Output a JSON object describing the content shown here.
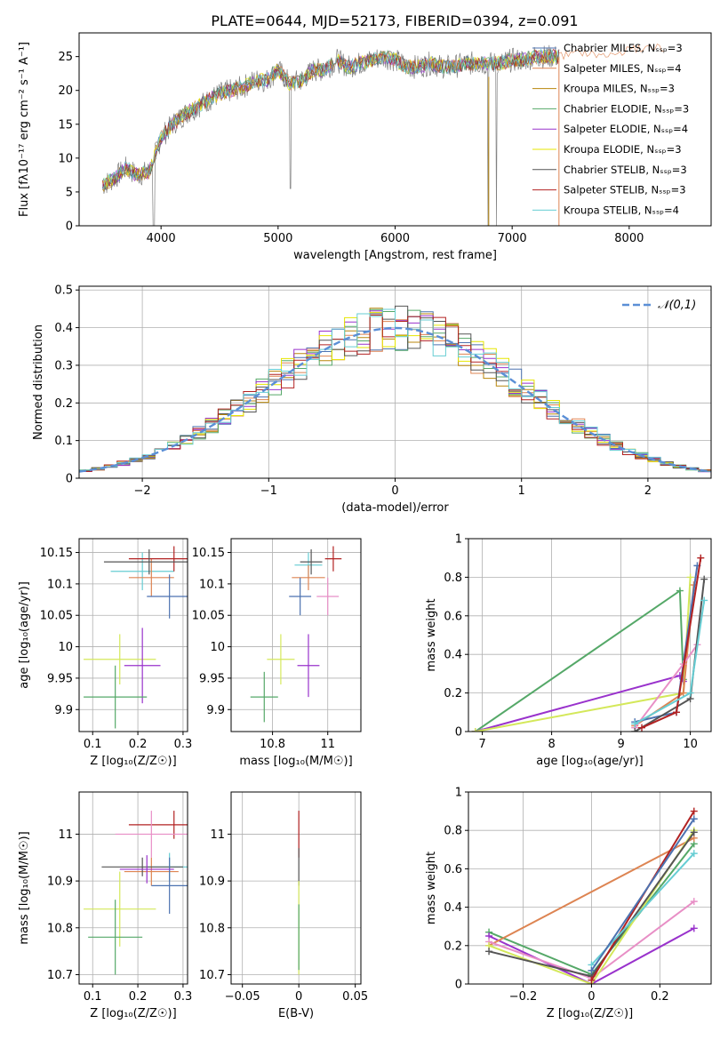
{
  "figure": {
    "title": "PLATE=0644, MJD=52173, FIBERID=0394, z=0.091"
  },
  "chart_data": [
    {
      "id": "spectrum",
      "type": "line",
      "xlabel": "wavelength [Angstrom, rest frame]",
      "ylabel": "Flux [fλ10⁻¹⁷ erg cm⁻² s⁻¹ A⁻¹]",
      "xlim": [
        3300,
        8700
      ],
      "ylim": [
        0,
        28.5
      ],
      "xticks": [
        4000,
        5000,
        6000,
        7000,
        8000
      ],
      "yticks": [
        0,
        5,
        10,
        15,
        20,
        25
      ],
      "grid": false,
      "legend_position": "right",
      "observed_color": "#808080",
      "continuum": {
        "x": [
          3500,
          3600,
          3700,
          3800,
          3900,
          4000,
          4100,
          4200,
          4300,
          4400,
          4500,
          4600,
          4700,
          4800,
          4900,
          5000,
          5100,
          5200,
          5300,
          5400,
          5500,
          5600,
          5700,
          5800,
          5900,
          6000,
          6100,
          6200,
          6300,
          6400,
          6500,
          6600,
          6700,
          6800,
          6900,
          7000,
          7100,
          7200,
          7300,
          7400
        ],
        "y": [
          6.0,
          7.0,
          8.5,
          7.5,
          8.0,
          13.0,
          15.0,
          16.5,
          17.5,
          18.5,
          19.5,
          20.0,
          20.5,
          21.5,
          21.5,
          23.0,
          21.0,
          21.5,
          23.0,
          23.0,
          24.5,
          23.5,
          24.0,
          24.5,
          25.0,
          24.5,
          23.5,
          23.5,
          24.0,
          23.5,
          23.5,
          24.0,
          24.0,
          24.0,
          24.0,
          24.5,
          24.5,
          25.0,
          25.0,
          25.0
        ]
      },
      "model_extension": {
        "x": [
          7400,
          7600,
          7800,
          8000,
          8200,
          8300
        ],
        "y": [
          25.0,
          25.5,
          25.0,
          26.0,
          26.5,
          26.0
        ]
      },
      "series": [
        {
          "name": "Chabrier MILES, N_SSP=3",
          "color": "#4c72b0"
        },
        {
          "name": "Salpeter MILES, N_SSP=4",
          "color": "#dd8452"
        },
        {
          "name": "Kroupa MILES, N_SSP=3",
          "color": "#b8860b"
        },
        {
          "name": "Chabrier ELODIE, N_SSP=3",
          "color": "#55a868"
        },
        {
          "name": "Salpeter ELODIE, N_SSP=4",
          "color": "#9932cc"
        },
        {
          "name": "Kroupa ELODIE, N_SSP=3",
          "color": "#e6e600"
        },
        {
          "name": "Chabrier STELIB, N_SSP=3",
          "color": "#555555"
        },
        {
          "name": "Salpeter STELIB, N_SSP=3",
          "color": "#b22222"
        },
        {
          "name": "Kroupa STELIB, N_SSP=4",
          "color": "#66cdd3"
        }
      ]
    },
    {
      "id": "residuals",
      "type": "line",
      "xlabel": "(data-model)/error",
      "ylabel": "Normed distribution",
      "xlim": [
        -2.5,
        2.5
      ],
      "ylim": [
        0,
        0.51
      ],
      "xticks": [
        -2,
        -1,
        0,
        1,
        2
      ],
      "yticks": [
        0.0,
        0.1,
        0.2,
        0.3,
        0.4,
        0.5
      ],
      "grid": true,
      "legend": "𝒩(0,1)",
      "legend_position": "top-right",
      "gauss_color": "#5b8fd6",
      "bin_width": 0.1,
      "hist_colors": [
        "#4c72b0",
        "#dd8452",
        "#b8860b",
        "#55a868",
        "#9932cc",
        "#e6e600",
        "#555555",
        "#b22222",
        "#66cdd3"
      ]
    },
    {
      "id": "age-vs-z",
      "type": "scatter",
      "xlabel": "Z [log₁₀(Z/Z☉)]",
      "ylabel": "age [log₁₀(age/yr)]",
      "xlim": [
        0.07,
        0.31
      ],
      "ylim": [
        9.865,
        10.172
      ],
      "xticks": [
        0.1,
        0.2,
        0.3
      ],
      "yticks": [
        9.9,
        9.95,
        10.0,
        10.05,
        10.1,
        10.15
      ],
      "grid": true,
      "points": [
        {
          "x": 0.21,
          "y": 10.12,
          "xerr": 0.07,
          "yerr": 0.03,
          "color": "#66cdd3"
        },
        {
          "x": 0.23,
          "y": 10.11,
          "xerr": 0.05,
          "yerr": 0.03,
          "color": "#dd8452"
        },
        {
          "x": 0.28,
          "y": 10.14,
          "xerr": 0.1,
          "yerr": 0.02,
          "color": "#b22222"
        },
        {
          "x": 0.225,
          "y": 10.135,
          "xerr": 0.1,
          "yerr": 0.02,
          "color": "#555555"
        },
        {
          "x": 0.27,
          "y": 10.08,
          "xerr": 0.05,
          "yerr": 0.035,
          "color": "#4c72b0"
        },
        {
          "x": 0.16,
          "y": 9.98,
          "xerr": 0.08,
          "yerr": 0.04,
          "color": "#d4e85a"
        },
        {
          "x": 0.21,
          "y": 9.97,
          "xerr": 0.04,
          "yerr": 0.06,
          "color": "#9932cc"
        },
        {
          "x": 0.15,
          "y": 9.92,
          "xerr": 0.07,
          "yerr": 0.05,
          "color": "#55a868"
        }
      ]
    },
    {
      "id": "age-vs-mass",
      "type": "scatter",
      "xlabel": "mass [log₁₀(M/M☉)]",
      "ylabel": "",
      "xlim": [
        10.65,
        11.12
      ],
      "ylim": [
        9.865,
        10.172
      ],
      "xticks": [
        10.8,
        11.0
      ],
      "yticks": [
        9.9,
        9.95,
        10.0,
        10.05,
        10.1,
        10.15
      ],
      "grid": true,
      "points": [
        {
          "x": 10.93,
          "y": 10.13,
          "xerr": 0.05,
          "yerr": 0.02,
          "color": "#66cdd3"
        },
        {
          "x": 10.93,
          "y": 10.11,
          "xerr": 0.06,
          "yerr": 0.02,
          "color": "#dd8452"
        },
        {
          "x": 11.02,
          "y": 10.14,
          "xerr": 0.03,
          "yerr": 0.02,
          "color": "#b22222"
        },
        {
          "x": 10.94,
          "y": 10.135,
          "xerr": 0.04,
          "yerr": 0.02,
          "color": "#555555"
        },
        {
          "x": 10.9,
          "y": 10.08,
          "xerr": 0.04,
          "yerr": 0.03,
          "color": "#4c72b0"
        },
        {
          "x": 11.0,
          "y": 10.08,
          "xerr": 0.04,
          "yerr": 0.03,
          "color": "#e88fc6"
        },
        {
          "x": 10.83,
          "y": 9.98,
          "xerr": 0.05,
          "yerr": 0.04,
          "color": "#d4e85a"
        },
        {
          "x": 10.93,
          "y": 9.97,
          "xerr": 0.04,
          "yerr": 0.05,
          "color": "#9932cc"
        },
        {
          "x": 10.77,
          "y": 9.92,
          "xerr": 0.05,
          "yerr": 0.04,
          "color": "#55a868"
        }
      ]
    },
    {
      "id": "weight-vs-age",
      "type": "line",
      "xlabel": "age [log₁₀(age/yr)]",
      "ylabel": "mass weight",
      "xlim": [
        6.8,
        10.3
      ],
      "ylim": [
        0,
        1.0
      ],
      "xticks": [
        7,
        8,
        9,
        10
      ],
      "yticks": [
        0.0,
        0.2,
        0.4,
        0.6,
        0.8,
        1.0
      ],
      "grid": true,
      "series": [
        {
          "color": "#55a868",
          "x": [
            6.9,
            9.85,
            9.9
          ],
          "y": [
            0.0,
            0.73,
            0.27
          ]
        },
        {
          "color": "#9932cc",
          "x": [
            6.9,
            9.85,
            9.9
          ],
          "y": [
            0.0,
            0.29,
            0.26
          ]
        },
        {
          "color": "#d4e85a",
          "x": [
            6.9,
            9.9,
            10.0
          ],
          "y": [
            0.0,
            0.2,
            0.8
          ]
        },
        {
          "color": "#dd8452",
          "x": [
            9.2,
            9.9,
            10.05
          ],
          "y": [
            0.03,
            0.2,
            0.76
          ]
        },
        {
          "color": "#4c72b0",
          "x": [
            9.2,
            9.8,
            10.1
          ],
          "y": [
            0.05,
            0.1,
            0.86
          ]
        },
        {
          "color": "#e88fc6",
          "x": [
            9.2,
            9.9,
            10.1
          ],
          "y": [
            0.02,
            0.35,
            0.45
          ]
        },
        {
          "color": "#555555",
          "x": [
            9.2,
            10.0,
            10.2
          ],
          "y": [
            0.0,
            0.17,
            0.79
          ]
        },
        {
          "color": "#b22222",
          "x": [
            9.3,
            9.8,
            10.15
          ],
          "y": [
            0.02,
            0.1,
            0.9
          ]
        },
        {
          "color": "#66cdd3",
          "x": [
            9.2,
            10.0,
            10.2
          ],
          "y": [
            0.04,
            0.2,
            0.68
          ]
        }
      ]
    },
    {
      "id": "mass-vs-z",
      "type": "scatter",
      "xlabel": "Z [log₁₀(Z/Z☉)]",
      "ylabel": "mass [log₁₀(M/M☉)]",
      "xlim": [
        0.07,
        0.31
      ],
      "ylim": [
        10.68,
        11.09
      ],
      "xticks": [
        0.1,
        0.2,
        0.3
      ],
      "yticks": [
        10.7,
        10.8,
        10.9,
        11.0
      ],
      "grid": true,
      "points": [
        {
          "x": 0.27,
          "y": 10.93,
          "xerr": 0.05,
          "yerr": 0.03,
          "color": "#66cdd3"
        },
        {
          "x": 0.23,
          "y": 10.92,
          "xerr": 0.06,
          "yerr": 0.03,
          "color": "#dd8452"
        },
        {
          "x": 0.28,
          "y": 11.02,
          "xerr": 0.1,
          "yerr": 0.03,
          "color": "#b22222"
        },
        {
          "x": 0.23,
          "y": 11.0,
          "xerr": 0.08,
          "yerr": 0.05,
          "color": "#e88fc6"
        },
        {
          "x": 0.21,
          "y": 10.93,
          "xerr": 0.09,
          "yerr": 0.02,
          "color": "#555555"
        },
        {
          "x": 0.27,
          "y": 10.89,
          "xerr": 0.04,
          "yerr": 0.06,
          "color": "#4c72b0"
        },
        {
          "x": 0.22,
          "y": 10.925,
          "xerr": 0.06,
          "yerr": 0.03,
          "color": "#9932cc"
        },
        {
          "x": 0.16,
          "y": 10.84,
          "xerr": 0.08,
          "yerr": 0.08,
          "color": "#d4e85a"
        },
        {
          "x": 0.15,
          "y": 10.78,
          "xerr": 0.06,
          "yerr": 0.08,
          "color": "#55a868"
        }
      ]
    },
    {
      "id": "mass-vs-ebv",
      "type": "scatter",
      "xlabel": "E(B-V)",
      "ylabel": "",
      "xlim": [
        -0.06,
        0.055
      ],
      "ylim": [
        10.68,
        11.09
      ],
      "xticks": [
        -0.05,
        0.0,
        0.05
      ],
      "yticks": [
        10.7,
        10.8,
        10.9,
        11.0
      ],
      "grid": true,
      "points": [
        {
          "x": 0.0,
          "y": 11.0,
          "xerr": 0,
          "yerr": 0.05,
          "color": "#b22222"
        },
        {
          "x": 0.0,
          "y": 10.93,
          "xerr": 0,
          "yerr": 0.04,
          "color": "#555555"
        },
        {
          "x": 0.0,
          "y": 10.8,
          "xerr": 0,
          "yerr": 0.1,
          "color": "#d4e85a"
        },
        {
          "x": 0.0,
          "y": 10.78,
          "xerr": 0,
          "yerr": 0.07,
          "color": "#55a868"
        }
      ]
    },
    {
      "id": "weight-vs-z",
      "type": "line",
      "xlabel": "Z [log₁₀(Z/Z☉)]",
      "ylabel": "mass weight",
      "xlim": [
        -0.36,
        0.35
      ],
      "ylim": [
        0,
        1.0
      ],
      "xticks": [
        -0.2,
        0.0,
        0.2
      ],
      "yticks": [
        0.0,
        0.2,
        0.4,
        0.6,
        0.8,
        1.0
      ],
      "grid": true,
      "series": [
        {
          "color": "#55a868",
          "x": [
            -0.3,
            0.0,
            0.3
          ],
          "y": [
            0.27,
            0.05,
            0.73
          ]
        },
        {
          "color": "#9932cc",
          "x": [
            -0.3,
            0.0,
            0.3
          ],
          "y": [
            0.25,
            0.0,
            0.29
          ]
        },
        {
          "color": "#dd8452",
          "x": [
            -0.3,
            0.3
          ],
          "y": [
            0.2,
            0.76
          ]
        },
        {
          "color": "#e88fc6",
          "x": [
            -0.3,
            0.0,
            0.3
          ],
          "y": [
            0.22,
            0.03,
            0.43
          ]
        },
        {
          "color": "#d4e85a",
          "x": [
            -0.3,
            0.0,
            0.3
          ],
          "y": [
            0.2,
            0.0,
            0.8
          ]
        },
        {
          "color": "#555555",
          "x": [
            -0.3,
            0.0,
            0.3
          ],
          "y": [
            0.17,
            0.04,
            0.79
          ]
        },
        {
          "color": "#b22222",
          "x": [
            0.0,
            0.3
          ],
          "y": [
            0.02,
            0.9
          ]
        },
        {
          "color": "#66cdd3",
          "x": [
            0.0,
            0.3
          ],
          "y": [
            0.1,
            0.68
          ]
        },
        {
          "color": "#4c72b0",
          "x": [
            0.0,
            0.3
          ],
          "y": [
            0.07,
            0.86
          ]
        }
      ]
    }
  ]
}
